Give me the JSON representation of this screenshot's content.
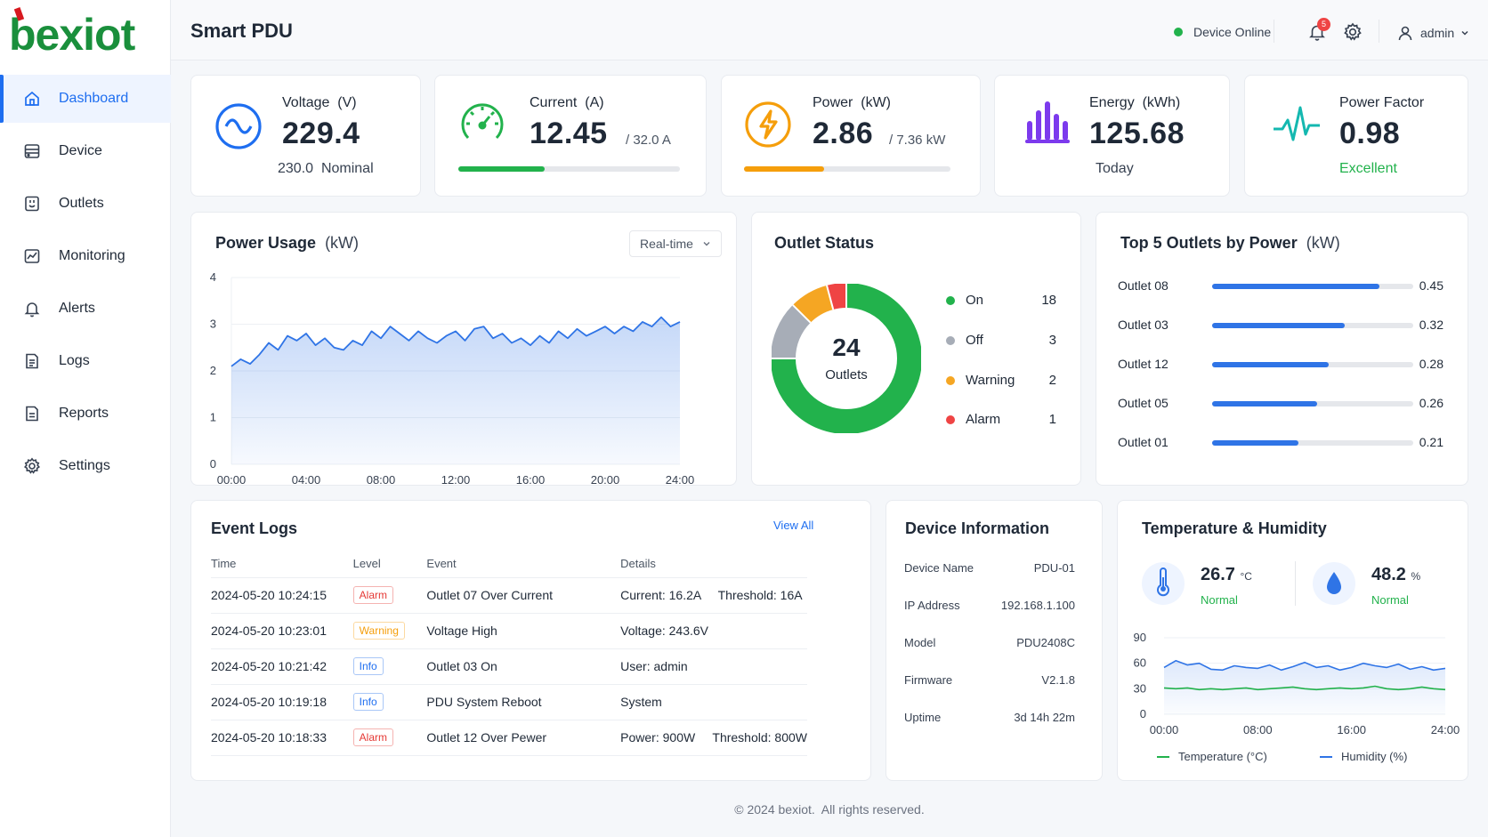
{
  "brand": {
    "name": "bexiot",
    "color": "#d7191f",
    "accent": "#1a8f3c"
  },
  "sidebar": {
    "items": [
      {
        "label": "Dashboard",
        "icon": "home-icon",
        "active": true
      },
      {
        "label": "Device",
        "icon": "device-icon"
      },
      {
        "label": "Outlets",
        "icon": "outlet-icon"
      },
      {
        "label": "Monitoring",
        "icon": "monitoring-icon"
      },
      {
        "label": "Alerts",
        "icon": "bell-icon"
      },
      {
        "label": "Logs",
        "icon": "logs-icon"
      },
      {
        "label": "Reports",
        "icon": "reports-icon"
      },
      {
        "label": "Settings",
        "icon": "gear-icon"
      }
    ]
  },
  "header": {
    "title": "Smart PDU",
    "status": "Device Online",
    "notifications": "5",
    "user": "admin"
  },
  "stats": {
    "voltage": {
      "label": "Voltage",
      "unit": "(V)",
      "value": "229.4",
      "nominal_value": "230.0",
      "nominal_label": "Nominal"
    },
    "current": {
      "label": "Current",
      "unit": "(A)",
      "value": "12.45",
      "max": "/ 32.0 A",
      "fill": 0.389,
      "color": "#22b24c"
    },
    "power": {
      "label": "Power",
      "unit": "(kW)",
      "value": "2.86",
      "max": "/ 7.36 kW",
      "fill": 0.389,
      "color": "#f59e0b"
    },
    "energy": {
      "label": "Energy",
      "unit": "(kWh)",
      "value": "125.68",
      "sub": "Today"
    },
    "power_factor": {
      "label": "Power Factor",
      "value": "0.98",
      "sub": "Excellent",
      "sub_color": "#22b24c"
    }
  },
  "power_usage": {
    "title": "Power Usage",
    "unit": "(kW)",
    "range": "Real-time"
  },
  "outlet_status": {
    "title": "Outlet Status",
    "total": "24",
    "total_label": "Outlets",
    "items": [
      {
        "label": "On",
        "count": "18",
        "color": "#22b24c"
      },
      {
        "label": "Off",
        "count": "3",
        "color": "#a7adb7"
      },
      {
        "label": "Warning",
        "count": "2",
        "color": "#f5a623"
      },
      {
        "label": "Alarm",
        "count": "1",
        "color": "#ef4444"
      }
    ]
  },
  "top_outlets": {
    "title": "Top 5 Outlets by Power",
    "unit": "(kW)",
    "max": 0.6,
    "items": [
      {
        "name": "Outlet 08",
        "value": "0.45",
        "fill": 0.83
      },
      {
        "name": "Outlet 03",
        "value": "0.32",
        "fill": 0.66
      },
      {
        "name": "Outlet 12",
        "value": "0.28",
        "fill": 0.58
      },
      {
        "name": "Outlet 05",
        "value": "0.26",
        "fill": 0.52
      },
      {
        "name": "Outlet 01",
        "value": "0.21",
        "fill": 0.43
      }
    ]
  },
  "event_logs": {
    "title": "Event Logs",
    "view_all": "View All",
    "columns": [
      "Time",
      "Level",
      "Event",
      "Details"
    ],
    "rows": [
      {
        "time": "2024-05-20 10:24:15",
        "level": "Alarm",
        "level_type": "alarm",
        "event": "Outlet 07 Over Current",
        "details": "Current: 16.2A     Threshold: 16A"
      },
      {
        "time": "2024-05-20 10:23:01",
        "level": "Warning",
        "level_type": "warning",
        "event": "Voltage High",
        "details": "Voltage: 243.6V"
      },
      {
        "time": "2024-05-20 10:21:42",
        "level": "Info",
        "level_type": "info",
        "event": "Outlet 03 On",
        "details": "User: admin"
      },
      {
        "time": "2024-05-20 10:19:18",
        "level": "Info",
        "level_type": "info",
        "event": "PDU System Reboot",
        "details": "System"
      },
      {
        "time": "2024-05-20 10:18:33",
        "level": "Alarm",
        "level_type": "alarm",
        "event": "Outlet 12 Over Pewer",
        "details": "Power: 900W     Threshold: 800W"
      }
    ]
  },
  "device_info": {
    "title": "Device Information",
    "rows": [
      {
        "label": "Device Name",
        "value": "PDU-01"
      },
      {
        "label": "IP Address",
        "value": "192.168.1.100"
      },
      {
        "label": "Model",
        "value": "PDU2408C"
      },
      {
        "label": "Firmware",
        "value": "V2.1.8"
      },
      {
        "label": "Uptime",
        "value": "3d 14h 22m"
      }
    ]
  },
  "temp_humidity": {
    "title": "Temperature & Humidity",
    "temperature": {
      "value": "26.7",
      "unit": "°C",
      "status": "Normal"
    },
    "humidity": {
      "value": "48.2",
      "unit": "%",
      "status": "Normal"
    },
    "legend": [
      "Temperature  (°C)",
      "Humidity  (%)"
    ]
  },
  "chart_data": [
    {
      "type": "area",
      "title": "Power Usage (kW)",
      "xlabel": "",
      "ylabel": "",
      "x_ticks": [
        "00:00",
        "04:00",
        "08:00",
        "12:00",
        "16:00",
        "20:00",
        "24:00"
      ],
      "y_ticks": [
        "0",
        "1",
        "2",
        "3",
        "4"
      ],
      "ylim": [
        0,
        4
      ],
      "xlim": [
        0,
        24
      ],
      "grid": true,
      "series": [
        {
          "color": "#2f74e6",
          "x": [
            0,
            0.5,
            1,
            1.5,
            2,
            2.5,
            3,
            3.5,
            4,
            4.5,
            5,
            5.5,
            6,
            6.5,
            7,
            7.5,
            8,
            8.5,
            9,
            9.5,
            10,
            10.5,
            11,
            11.5,
            12,
            12.5,
            13,
            13.5,
            14,
            14.5,
            15,
            15.5,
            16,
            16.5,
            17,
            17.5,
            18,
            18.5,
            19,
            19.5,
            20,
            20.5,
            21,
            21.5,
            22,
            22.5,
            23,
            23.5,
            24
          ],
          "y": [
            2.1,
            2.25,
            2.15,
            2.35,
            2.6,
            2.45,
            2.75,
            2.65,
            2.8,
            2.55,
            2.7,
            2.5,
            2.45,
            2.65,
            2.55,
            2.85,
            2.7,
            2.95,
            2.8,
            2.65,
            2.85,
            2.7,
            2.6,
            2.75,
            2.85,
            2.65,
            2.9,
            2.95,
            2.7,
            2.8,
            2.6,
            2.7,
            2.55,
            2.75,
            2.6,
            2.85,
            2.7,
            2.9,
            2.75,
            2.85,
            2.95,
            2.8,
            2.95,
            2.85,
            3.05,
            2.95,
            3.15,
            2.95,
            3.05
          ]
        }
      ]
    },
    {
      "type": "pie",
      "title": "Outlet Status",
      "categories": [
        "On",
        "Off",
        "Warning",
        "Alarm"
      ],
      "values": [
        18,
        3,
        2,
        1
      ]
    },
    {
      "type": "bar",
      "title": "Top 5 Outlets by Power (kW)",
      "categories": [
        "Outlet 08",
        "Outlet 03",
        "Outlet 12",
        "Outlet 05",
        "Outlet 01"
      ],
      "values": [
        0.45,
        0.32,
        0.28,
        0.26,
        0.21
      ]
    },
    {
      "type": "line",
      "title": "Temperature & Humidity",
      "x_ticks": [
        "00:00",
        "08:00",
        "16:00",
        "24:00"
      ],
      "y_ticks": [
        "0",
        "30",
        "60",
        "90"
      ],
      "ylim": [
        0,
        90
      ],
      "xlim": [
        0,
        24
      ],
      "series": [
        {
          "name": "Temperature  (°C)",
          "color": "#22b24c",
          "x": [
            0,
            1,
            2,
            3,
            4,
            5,
            6,
            7,
            8,
            9,
            10,
            11,
            12,
            13,
            14,
            15,
            16,
            17,
            18,
            19,
            20,
            21,
            22,
            23,
            24
          ],
          "y": [
            31,
            30,
            31,
            29,
            30,
            29,
            30,
            31,
            29,
            30,
            31,
            32,
            30,
            29,
            30,
            31,
            30,
            31,
            33,
            30,
            29,
            30,
            32,
            30,
            29
          ]
        },
        {
          "name": "Humidity  (%)",
          "color": "#2f74e6",
          "x": [
            0,
            1,
            2,
            3,
            4,
            5,
            6,
            7,
            8,
            9,
            10,
            11,
            12,
            13,
            14,
            15,
            16,
            17,
            18,
            19,
            20,
            21,
            22,
            23,
            24
          ],
          "y": [
            55,
            63,
            58,
            60,
            53,
            52,
            57,
            55,
            54,
            58,
            52,
            56,
            61,
            55,
            57,
            52,
            55,
            60,
            57,
            55,
            59,
            53,
            56,
            52,
            54
          ]
        }
      ]
    }
  ]
}
